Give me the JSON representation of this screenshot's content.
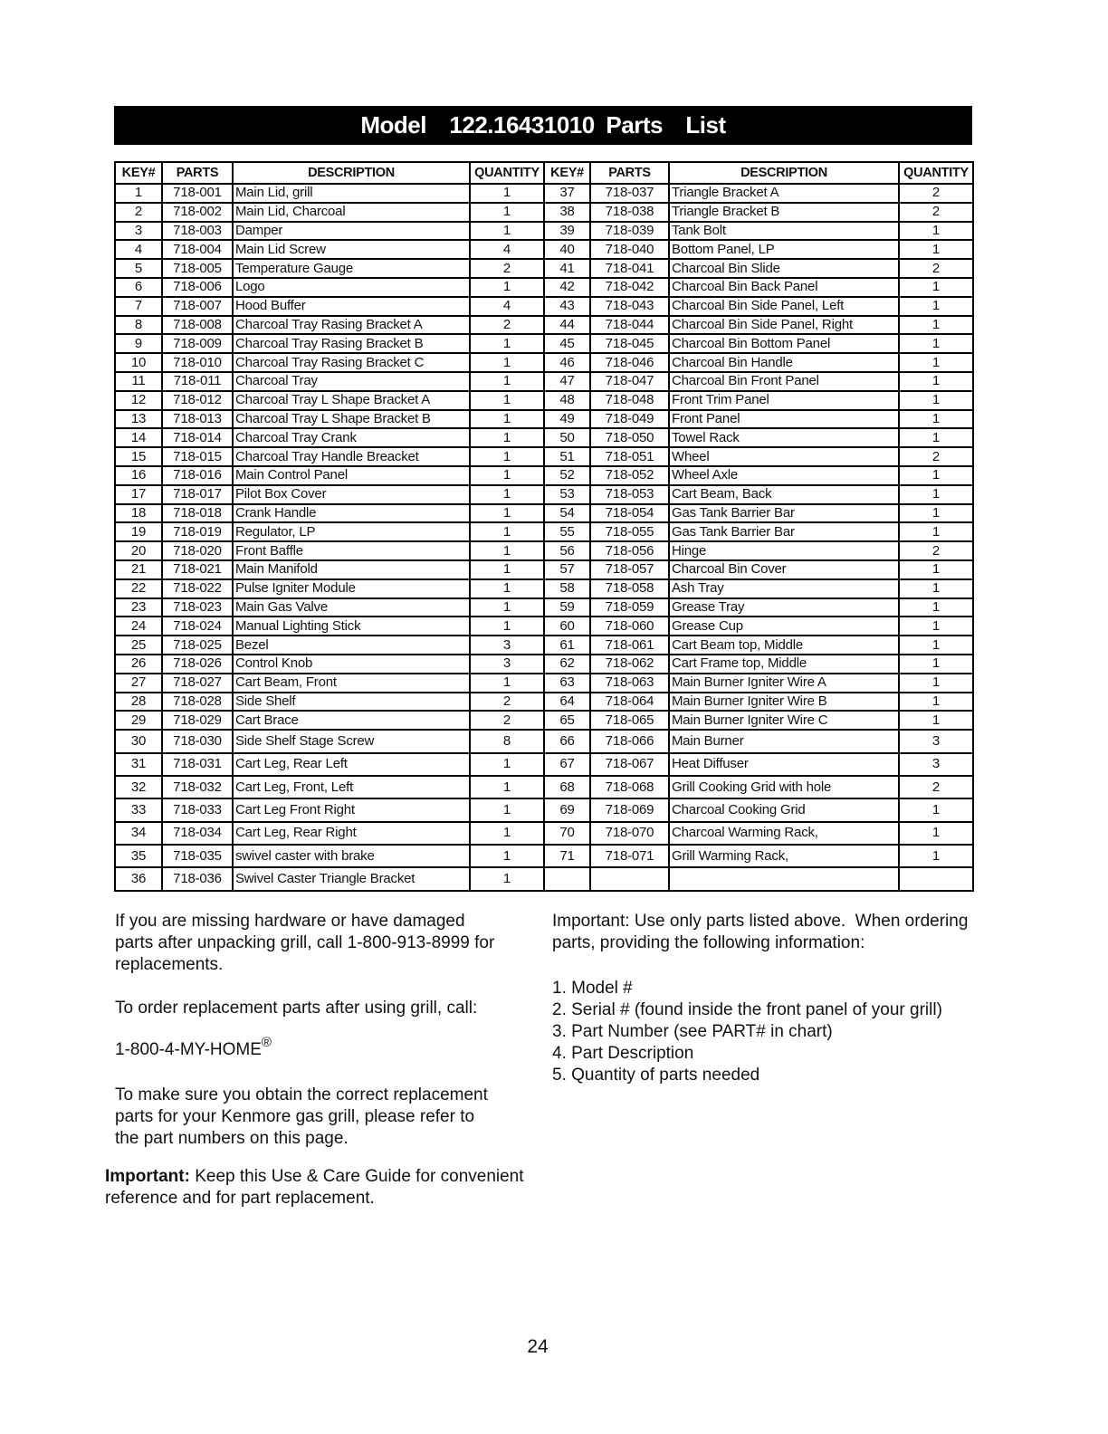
{
  "title": "Model  122.16431010 Parts  List",
  "table": {
    "headers": [
      "KEY#",
      "PARTS",
      "DESCRIPTION",
      "QUANTITY"
    ],
    "rows_left": [
      [
        "1",
        "718-001",
        "Main Lid, grill",
        "1"
      ],
      [
        "2",
        "718-002",
        "Main Lid, Charcoal",
        "1"
      ],
      [
        "3",
        "718-003",
        "Damper",
        "1"
      ],
      [
        "4",
        "718-004",
        "Main Lid Screw",
        "4"
      ],
      [
        "5",
        "718-005",
        "Temperature Gauge",
        "2"
      ],
      [
        "6",
        "718-006",
        "Logo",
        "1"
      ],
      [
        "7",
        "718-007",
        "Hood Buffer",
        "4"
      ],
      [
        "8",
        "718-008",
        "Charcoal Tray Rasing Bracket A",
        "2"
      ],
      [
        "9",
        "718-009",
        "Charcoal Tray Rasing Bracket B",
        "1"
      ],
      [
        "10",
        "718-010",
        "Charcoal Tray Rasing Bracket C",
        "1"
      ],
      [
        "11",
        "718-011",
        "Charcoal Tray",
        "1"
      ],
      [
        "12",
        "718-012",
        "Charcoal Tray L Shape Bracket A",
        "1"
      ],
      [
        "13",
        "718-013",
        "Charcoal Tray L Shape Bracket B",
        "1"
      ],
      [
        "14",
        "718-014",
        "Charcoal Tray Crank",
        "1"
      ],
      [
        "15",
        "718-015",
        "Charcoal Tray Handle Breacket",
        "1"
      ],
      [
        "16",
        "718-016",
        "Main Control Panel",
        "1"
      ],
      [
        "17",
        "718-017",
        "Pilot Box Cover",
        "1"
      ],
      [
        "18",
        "718-018",
        "Crank Handle",
        "1"
      ],
      [
        "19",
        "718-019",
        "Regulator, LP",
        "1"
      ],
      [
        "20",
        "718-020",
        "Front Baffle",
        "1"
      ],
      [
        "21",
        "718-021",
        "Main Manifold",
        "1"
      ],
      [
        "22",
        "718-022",
        "Pulse Igniter Module",
        "1"
      ],
      [
        "23",
        "718-023",
        "Main Gas Valve",
        "1"
      ],
      [
        "24",
        "718-024",
        "Manual Lighting Stick",
        "1"
      ],
      [
        "25",
        "718-025",
        "Bezel",
        "3"
      ],
      [
        "26",
        "718-026",
        "Control Knob",
        "3"
      ],
      [
        "27",
        "718-027",
        "Cart Beam, Front",
        "1"
      ],
      [
        "28",
        "718-028",
        "Side Shelf",
        "2"
      ],
      [
        "29",
        "718-029",
        "Cart Brace",
        "2"
      ],
      [
        "30",
        "718-030",
        "Side Shelf Stage Screw",
        "8"
      ],
      [
        "31",
        "718-031",
        "Cart Leg, Rear Left",
        "1"
      ],
      [
        "32",
        "718-032",
        "Cart Leg, Front, Left",
        "1"
      ],
      [
        "33",
        "718-033",
        "Cart Leg Front Right",
        "1"
      ],
      [
        "34",
        "718-034",
        "Cart Leg, Rear Right",
        "1"
      ],
      [
        "35",
        "718-035",
        "swivel caster with brake",
        "1"
      ],
      [
        "36",
        "718-036",
        "Swivel Caster Triangle Bracket",
        "1"
      ]
    ],
    "rows_right": [
      [
        "37",
        "718-037",
        "Triangle Bracket A",
        "2"
      ],
      [
        "38",
        "718-038",
        "Triangle Bracket B",
        "2"
      ],
      [
        "39",
        "718-039",
        "Tank Bolt",
        "1"
      ],
      [
        "40",
        "718-040",
        "Bottom Panel, LP",
        "1"
      ],
      [
        "41",
        "718-041",
        "Charcoal Bin Slide",
        "2"
      ],
      [
        "42",
        "718-042",
        "Charcoal Bin Back Panel",
        "1"
      ],
      [
        "43",
        "718-043",
        "Charcoal Bin Side Panel, Left",
        "1"
      ],
      [
        "44",
        "718-044",
        "Charcoal Bin Side Panel, Right",
        "1"
      ],
      [
        "45",
        "718-045",
        "Charcoal Bin Bottom Panel",
        "1"
      ],
      [
        "46",
        "718-046",
        "Charcoal Bin Handle",
        "1"
      ],
      [
        "47",
        "718-047",
        "Charcoal Bin Front Panel",
        "1"
      ],
      [
        "48",
        "718-048",
        "Front Trim Panel",
        "1"
      ],
      [
        "49",
        "718-049",
        "Front Panel",
        "1"
      ],
      [
        "50",
        "718-050",
        "Towel Rack",
        "1"
      ],
      [
        "51",
        "718-051",
        "Wheel",
        "2"
      ],
      [
        "52",
        "718-052",
        "Wheel Axle",
        "1"
      ],
      [
        "53",
        "718-053",
        "Cart Beam, Back",
        "1"
      ],
      [
        "54",
        "718-054",
        "Gas Tank Barrier Bar",
        "1"
      ],
      [
        "55",
        "718-055",
        "Gas Tank Barrier Bar",
        "1"
      ],
      [
        "56",
        "718-056",
        "Hinge",
        "2"
      ],
      [
        "57",
        "718-057",
        "Charcoal Bin Cover",
        "1"
      ],
      [
        "58",
        "718-058",
        "Ash Tray",
        "1"
      ],
      [
        "59",
        "718-059",
        "Grease Tray",
        "1"
      ],
      [
        "60",
        "718-060",
        "Grease Cup",
        "1"
      ],
      [
        "61",
        "718-061",
        "Cart Beam top, Middle",
        "1"
      ],
      [
        "62",
        "718-062",
        "Cart Frame top, Middle",
        "1"
      ],
      [
        "63",
        "718-063",
        "Main Burner Igniter Wire A",
        "1"
      ],
      [
        "64",
        "718-064",
        "Main Burner Igniter Wire B",
        "1"
      ],
      [
        "65",
        "718-065",
        "Main Burner Igniter Wire C",
        "1"
      ],
      [
        "66",
        "718-066",
        "Main Burner",
        "3"
      ],
      [
        "67",
        "718-067",
        "Heat Diffuser",
        "3"
      ],
      [
        "68",
        "718-068",
        "Grill Cooking Grid with hole",
        "2"
      ],
      [
        "69",
        "718-069",
        "Charcoal Cooking Grid",
        "1"
      ],
      [
        "70",
        "718-070",
        "Charcoal Warming Rack,",
        "1"
      ],
      [
        "71",
        "718-071",
        "Grill Warming Rack,",
        "1"
      ]
    ]
  },
  "notes_left": {
    "p1": "If you are missing hardware or have damaged\nparts after unpacking grill, call 1-800-913-8999 for\nreplacements.",
    "p2": "To order replacement parts after using grill, call:",
    "phone": "1-800-4-MY-HOME",
    "reg": "®",
    "p4": "To make sure you obtain the correct replacement\nparts for your Kenmore gas grill, please refer to\nthe part numbers on this page.",
    "important_label": "Important:",
    "important_text": " Keep this Use & Care Guide for convenient\nreference and for part replacement."
  },
  "notes_right": {
    "p1": "Important: Use only parts listed above.  When ordering\nparts, providing the following information:",
    "items": [
      "1. Model #",
      "2. Serial # (found inside the front panel of your grill)",
      "3. Part Number (see PART# in chart)",
      "4. Part Description",
      "5. Quantity of parts needed"
    ]
  },
  "page_number": "24"
}
